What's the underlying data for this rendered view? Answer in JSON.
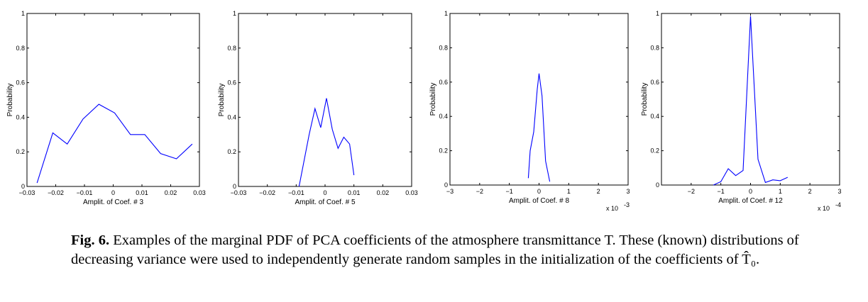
{
  "chart_data": [
    {
      "type": "line",
      "xlabel": "Amplit. of Coef. # 3",
      "ylabel": "Probability",
      "xlim": [
        -0.03,
        0.03
      ],
      "ylim": [
        0,
        1
      ],
      "xticks": [
        -0.03,
        -0.02,
        -0.01,
        0,
        0.01,
        0.02,
        0.03
      ],
      "xtick_labels": [
        "−0.03",
        "−0.02",
        "−0.01",
        "0",
        "0.01",
        "0.02",
        "0.03"
      ],
      "yticks": [
        0,
        0.2,
        0.4,
        0.6,
        0.8,
        1
      ],
      "ytick_labels": [
        "0",
        "0.2",
        "0.4",
        "0.6",
        "0.8",
        "1"
      ],
      "exponent_label": "",
      "line_color": "#0000ff",
      "series": [
        {
          "x": [
            -0.0265,
            -0.021,
            -0.016,
            -0.0105,
            -0.005,
            0.0005,
            0.006,
            0.011,
            0.0165,
            0.022,
            0.0275
          ],
          "y": [
            0.02,
            0.31,
            0.245,
            0.39,
            0.475,
            0.425,
            0.3,
            0.3,
            0.19,
            0.16,
            0.245
          ]
        }
      ]
    },
    {
      "type": "line",
      "xlabel": "Amplit. of Coef. # 5",
      "ylabel": "Probability",
      "xlim": [
        -0.03,
        0.03
      ],
      "ylim": [
        0,
        1
      ],
      "xticks": [
        -0.03,
        -0.02,
        -0.01,
        0,
        0.01,
        0.02,
        0.03
      ],
      "xtick_labels": [
        "−0.03",
        "−0.02",
        "−0.01",
        "0",
        "0.01",
        "0.02",
        "0.03"
      ],
      "yticks": [
        0,
        0.2,
        0.4,
        0.6,
        0.8,
        1
      ],
      "ytick_labels": [
        "0",
        "0.2",
        "0.4",
        "0.6",
        "0.8",
        "1"
      ],
      "exponent_label": "",
      "line_color": "#0000ff",
      "series": [
        {
          "x": [
            -0.009,
            -0.0055,
            -0.0035,
            -0.0015,
            0.0005,
            0.0025,
            0.0045,
            0.0065,
            0.0085,
            0.01
          ],
          "y": [
            0.0,
            0.3,
            0.45,
            0.34,
            0.51,
            0.33,
            0.22,
            0.285,
            0.245,
            0.065
          ]
        }
      ]
    },
    {
      "type": "line",
      "xlabel": "Amplit. of Coef. # 8",
      "ylabel": "Probability",
      "xlim": [
        -3,
        3
      ],
      "ylim": [
        0,
        1
      ],
      "xticks": [
        -3,
        -2,
        -1,
        0,
        1,
        2,
        3
      ],
      "xtick_labels": [
        "−3",
        "−2",
        "−1",
        "0",
        "1",
        "2",
        "3"
      ],
      "yticks": [
        0,
        0.2,
        0.4,
        0.6,
        0.8,
        1
      ],
      "ytick_labels": [
        "0",
        "0.2",
        "0.4",
        "0.6",
        "0.8",
        "1"
      ],
      "exponent_label": "x 10",
      "exponent_power": "-3",
      "line_color": "#0000ff",
      "series": [
        {
          "x": [
            -0.36,
            -0.3,
            -0.18,
            -0.06,
            0.0,
            0.1,
            0.22,
            0.36
          ],
          "y": [
            0.04,
            0.2,
            0.31,
            0.56,
            0.65,
            0.52,
            0.14,
            0.02
          ]
        }
      ]
    },
    {
      "type": "line",
      "xlabel": "Amplit. of Coef. # 12",
      "ylabel": "Probability",
      "xlim": [
        -3,
        3
      ],
      "ylim": [
        0,
        1
      ],
      "xticks": [
        -2,
        -1,
        0,
        1,
        2,
        3
      ],
      "xtick_labels": [
        "−2",
        "−1",
        "0",
        "1",
        "2",
        "3"
      ],
      "yticks": [
        0,
        0.2,
        0.4,
        0.6,
        0.8,
        1
      ],
      "ytick_labels": [
        "0",
        "0.2",
        "0.4",
        "0.6",
        "0.8",
        "1"
      ],
      "exponent_label": "x 10",
      "exponent_power": "-4",
      "line_color": "#0000ff",
      "series": [
        {
          "x": [
            -1.25,
            -1.0,
            -0.75,
            -0.5,
            -0.25,
            0.0,
            0.25,
            0.5,
            0.75,
            1.0,
            1.25
          ],
          "y": [
            0.0,
            0.02,
            0.095,
            0.055,
            0.085,
            0.985,
            0.15,
            0.015,
            0.03,
            0.025,
            0.045
          ]
        }
      ]
    }
  ],
  "caption": {
    "label": "Fig. 6.",
    "text": " Examples of the marginal PDF of PCA coefficients of the atmosphere transmittance T. These (known) distributions of decreasing variance were used to independently generate random samples in the initialization of the coefficients of T̂₀."
  }
}
